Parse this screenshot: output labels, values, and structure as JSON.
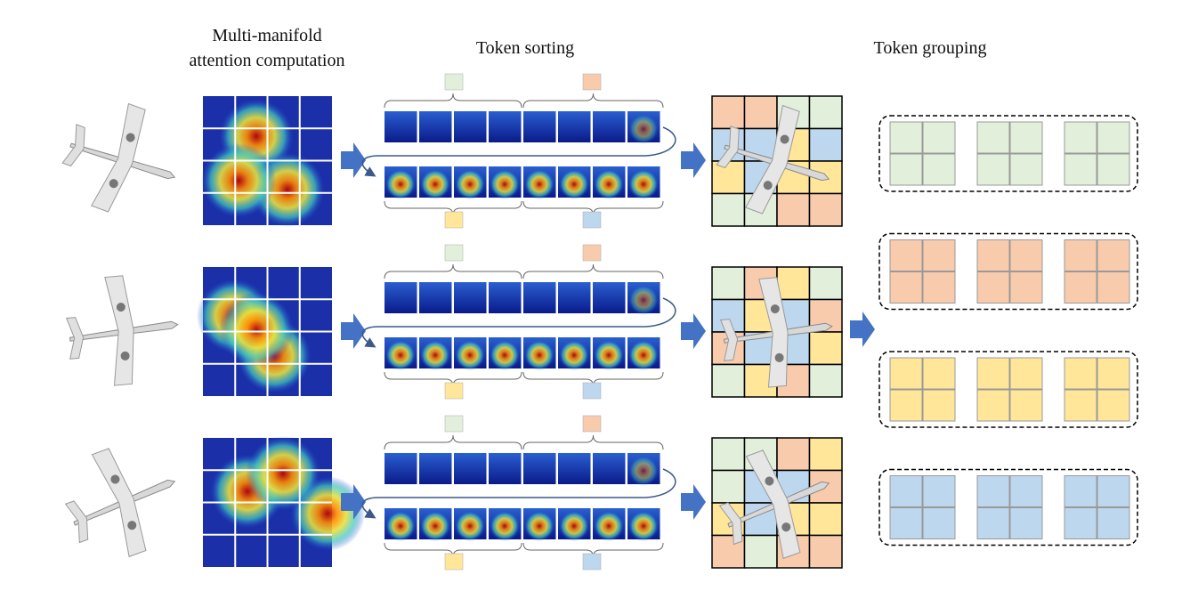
{
  "header": {
    "attention": {
      "lines": [
        "Multi-manifold",
        "attention computation"
      ]
    },
    "sorting": {
      "title": "Token sorting"
    },
    "grouping": {
      "title": "Token grouping"
    }
  }
}
